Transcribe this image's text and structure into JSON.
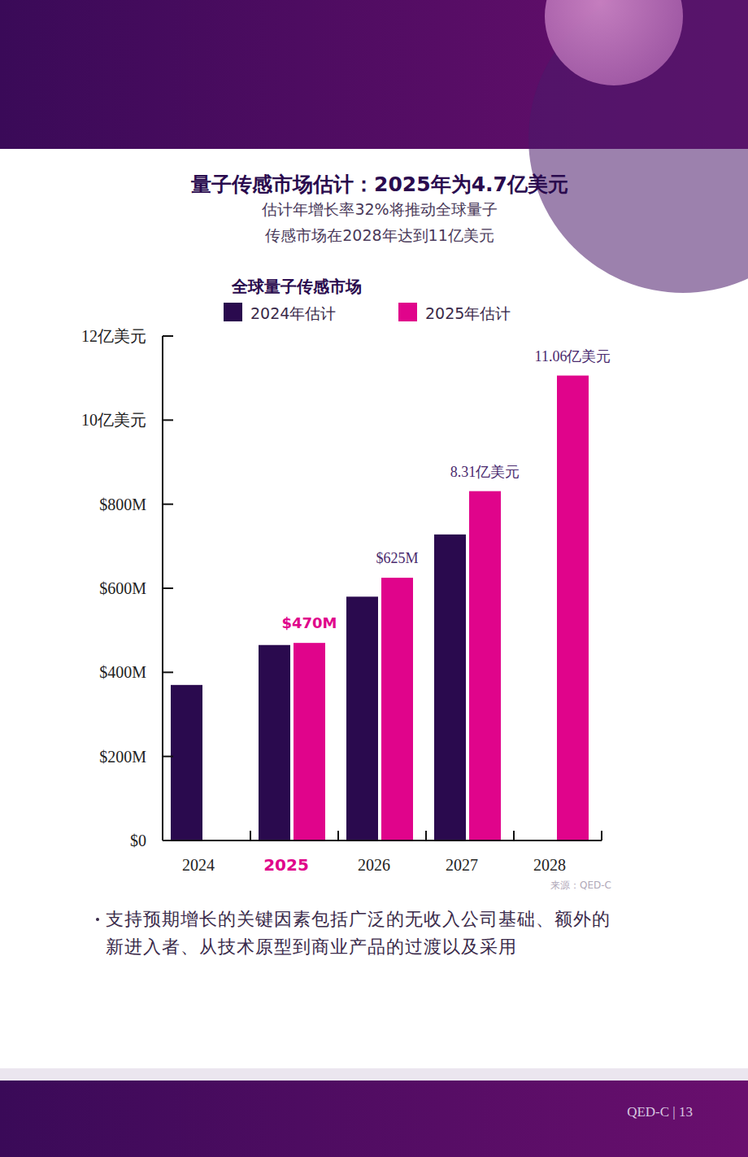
{
  "header": {
    "title": "量子传感市场估计：2025年为4.7亿美元",
    "subtitle": [
      "估计年增长率32%将推动全球量子",
      "传感市场在2028年达到11亿美元"
    ]
  },
  "chart_data": {
    "type": "bar",
    "title": "全球量子传感市场",
    "categories": [
      "2024",
      "2025",
      "2026",
      "2027",
      "2028"
    ],
    "series": [
      {
        "name": "2024年估计",
        "color": "#2a0a4e",
        "values": [
          370,
          465,
          580,
          728,
          null
        ]
      },
      {
        "name": "2025年估计",
        "color": "#e0048b",
        "values": [
          null,
          470,
          625,
          831,
          1106
        ],
        "value_labels": [
          null,
          "$470M",
          "$625M",
          "8.31亿美元",
          "11.06亿美元"
        ]
      }
    ],
    "ylim": [
      0,
      1200
    ],
    "yticks": [
      {
        "value": 0,
        "label": "$0"
      },
      {
        "value": 200,
        "label": "$200M"
      },
      {
        "value": 400,
        "label": "$400M"
      },
      {
        "value": 600,
        "label": "$600M"
      },
      {
        "value": 800,
        "label": "$800M"
      },
      {
        "value": 1000,
        "label": "10亿美元"
      },
      {
        "value": 1200,
        "label": "12亿美元"
      }
    ],
    "grid": false,
    "legend": "top",
    "data_labels": true
  },
  "source": "来源：QED-C",
  "note": "支持预期增长的关键因素包括广泛的无收入公司基础、额外的新进入者、从技术原型到商业产品的过渡以及采用",
  "footer": "QED-C | 13"
}
